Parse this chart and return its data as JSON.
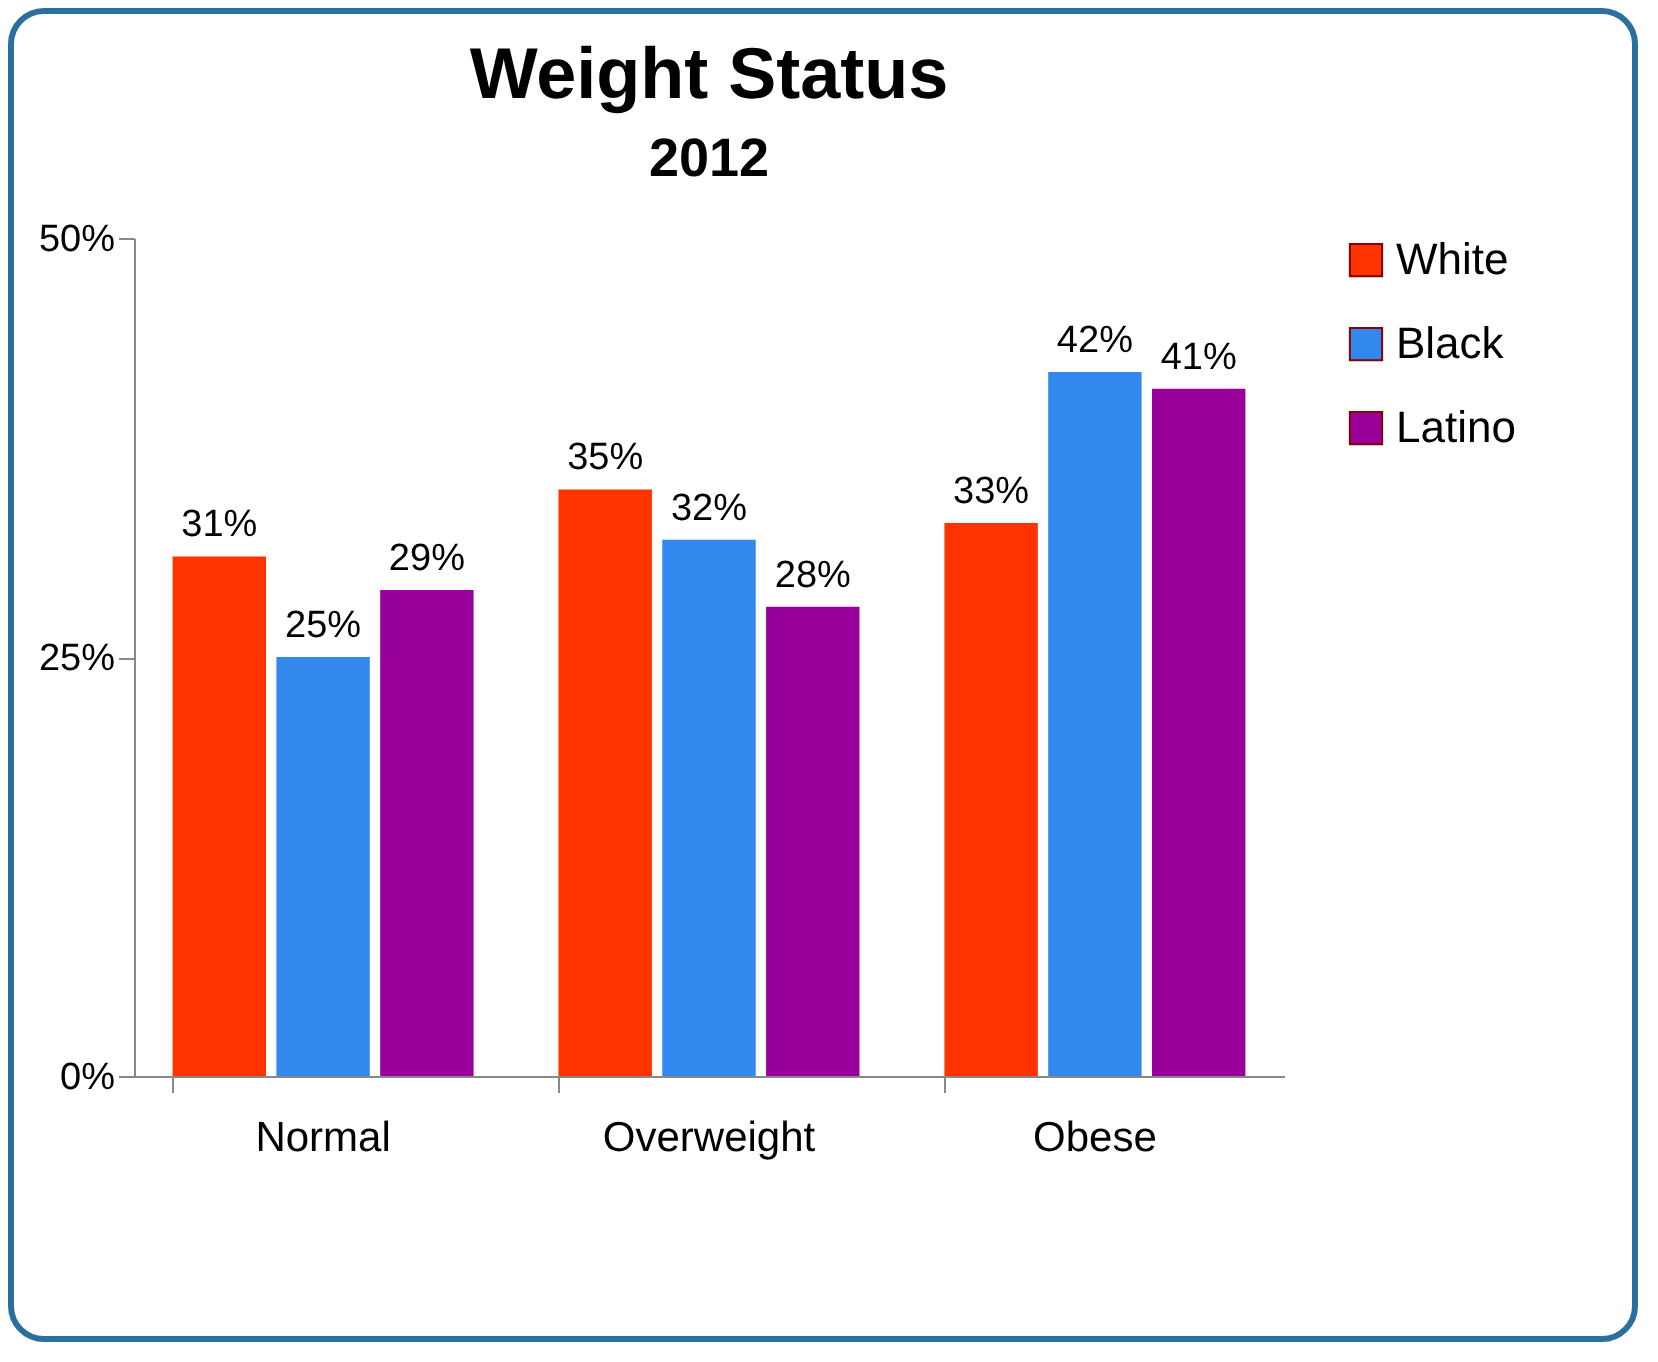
{
  "chart_data": {
    "type": "bar",
    "title": "Weight Status",
    "subtitle": "2012",
    "categories": [
      "Normal",
      "Overweight",
      "Obese"
    ],
    "series": [
      {
        "name": "White",
        "color": "#ff3300",
        "values": [
          31,
          35,
          33
        ],
        "value_labels": [
          "31%",
          "35%",
          "33%"
        ]
      },
      {
        "name": "Black",
        "color": "#3388ee",
        "values": [
          25,
          32,
          42
        ],
        "value_labels": [
          "25%",
          "32%",
          "42%"
        ]
      },
      {
        "name": "Latino",
        "color": "#990099",
        "values": [
          29,
          28,
          41
        ],
        "value_labels": [
          "29%",
          "28%",
          "41%"
        ]
      }
    ],
    "ylim": [
      0,
      50
    ],
    "yticks": [
      {
        "value": 0,
        "label": "0%"
      },
      {
        "value": 25,
        "label": "25%"
      },
      {
        "value": 50,
        "label": "50%"
      }
    ],
    "grid": false,
    "legend": "right"
  }
}
